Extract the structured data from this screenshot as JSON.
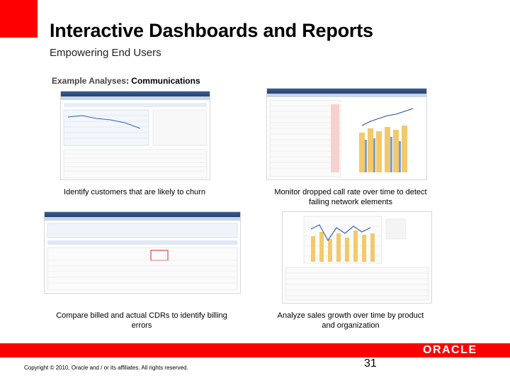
{
  "slide": {
    "title": "Interactive Dashboards and Reports",
    "subtitle": "Empowering End Users",
    "section_label": "Example Analyses",
    "section_sep": ":",
    "section_value": "Communications",
    "page_number": "31",
    "copyright": "Copyright © 2010, Oracle and / or its affiliates. All rights reserved.",
    "logo_text": "ORACLE",
    "accent_color": "#ff0000"
  },
  "examples": [
    {
      "caption": "Identify customers that are likely to churn"
    },
    {
      "caption": "Monitor dropped call rate over time to detect failing network elements"
    },
    {
      "caption": "Compare billed and actual CDRs to identify billing errors"
    },
    {
      "caption": "Analyze sales growth over time by product and organization"
    }
  ]
}
